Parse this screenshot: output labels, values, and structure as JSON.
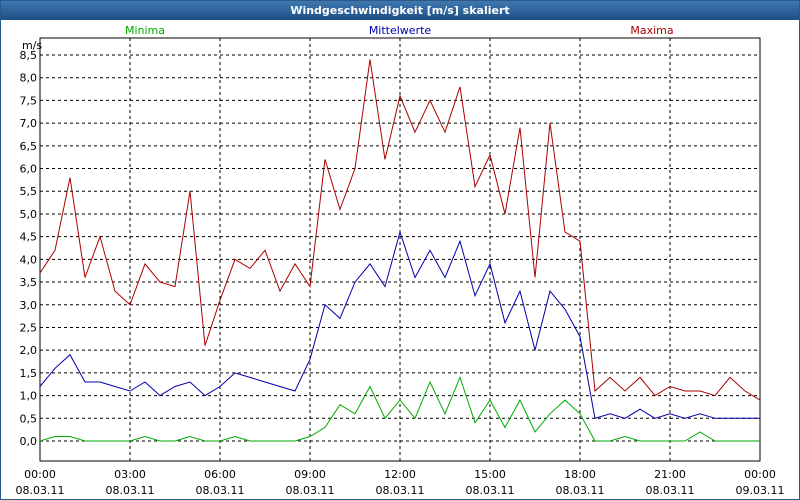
{
  "window": {
    "title": "Windgeschwindigkeit [m/s] skaliert"
  },
  "chart_data": {
    "type": "line",
    "title": "Windgeschwindigkeit [m/s] skaliert",
    "ylabel": "m/s",
    "ylim": [
      0,
      8.5
    ],
    "yticks": [
      "0,0",
      "0,5",
      "1,0",
      "1,5",
      "2,0",
      "2,5",
      "3,0",
      "3,5",
      "4,0",
      "4,5",
      "5,0",
      "5,5",
      "6,0",
      "6,5",
      "7,0",
      "7,5",
      "8,0",
      "8,5"
    ],
    "xlim": [
      0,
      24
    ],
    "xticks": [
      {
        "time": "00:00",
        "date": "08.03.11"
      },
      {
        "time": "03:00",
        "date": "08.03.11"
      },
      {
        "time": "06:00",
        "date": "08.03.11"
      },
      {
        "time": "09:00",
        "date": "08.03.11"
      },
      {
        "time": "12:00",
        "date": "08.03.11"
      },
      {
        "time": "15:00",
        "date": "08.03.11"
      },
      {
        "time": "18:00",
        "date": "08.03.11"
      },
      {
        "time": "21:00",
        "date": "08.03.11"
      },
      {
        "time": "00:00",
        "date": "09.03.11"
      }
    ],
    "legend": [
      {
        "name": "Minima",
        "color": "#00aa00"
      },
      {
        "name": "Mittelwerte",
        "color": "#0000aa"
      },
      {
        "name": "Maxima",
        "color": "#aa0000"
      }
    ],
    "x": [
      0,
      0.5,
      1,
      1.5,
      2,
      2.5,
      3,
      3.5,
      4,
      4.5,
      5,
      5.5,
      6,
      6.5,
      7,
      7.5,
      8,
      8.5,
      9,
      9.5,
      10,
      10.5,
      11,
      11.5,
      12,
      12.5,
      13,
      13.5,
      14,
      14.5,
      15,
      15.5,
      16,
      16.5,
      17,
      17.5,
      18,
      18.5,
      19,
      19.5,
      20,
      20.5,
      21,
      21.5,
      22,
      22.5,
      23,
      23.5,
      24
    ],
    "series": [
      {
        "name": "Maxima",
        "color": "#aa0000",
        "values": [
          3.7,
          4.2,
          5.8,
          3.6,
          4.5,
          3.3,
          3.0,
          3.9,
          3.5,
          3.4,
          5.5,
          2.1,
          3.1,
          4.0,
          3.8,
          4.2,
          3.3,
          3.9,
          3.4,
          6.2,
          5.1,
          6.0,
          8.4,
          6.2,
          7.6,
          6.8,
          7.5,
          6.8,
          7.8,
          5.6,
          6.3,
          5.0,
          6.9,
          3.6,
          7.0,
          4.6,
          4.4,
          1.1,
          1.4,
          1.1,
          1.4,
          1.0,
          1.2,
          1.1,
          1.1,
          1.0,
          1.4,
          1.1,
          0.9
        ]
      },
      {
        "name": "Mittelwerte",
        "color": "#0000aa",
        "values": [
          1.2,
          1.6,
          1.9,
          1.3,
          1.3,
          1.2,
          1.1,
          1.3,
          1.0,
          1.2,
          1.3,
          1.0,
          1.2,
          1.5,
          1.4,
          1.3,
          1.2,
          1.1,
          1.8,
          3.0,
          2.7,
          3.5,
          3.9,
          3.4,
          4.6,
          3.6,
          4.2,
          3.6,
          4.4,
          3.2,
          3.9,
          2.6,
          3.3,
          2.0,
          3.3,
          2.9,
          2.3,
          0.5,
          0.6,
          0.5,
          0.7,
          0.5,
          0.6,
          0.5,
          0.6,
          0.5,
          0.5,
          0.5,
          0.5
        ]
      },
      {
        "name": "Minima",
        "color": "#00aa00",
        "values": [
          0.0,
          0.1,
          0.1,
          0.0,
          0.0,
          0.0,
          0.0,
          0.1,
          0.0,
          0.0,
          0.1,
          0.0,
          0.0,
          0.1,
          0.0,
          0.0,
          0.0,
          0.0,
          0.1,
          0.3,
          0.8,
          0.6,
          1.2,
          0.5,
          0.9,
          0.5,
          1.3,
          0.6,
          1.4,
          0.4,
          0.9,
          0.3,
          0.9,
          0.2,
          0.6,
          0.9,
          0.6,
          0.0,
          0.0,
          0.1,
          0.0,
          0.0,
          0.0,
          0.0,
          0.2,
          0.0,
          0.0,
          0.0,
          0.0
        ]
      }
    ]
  }
}
